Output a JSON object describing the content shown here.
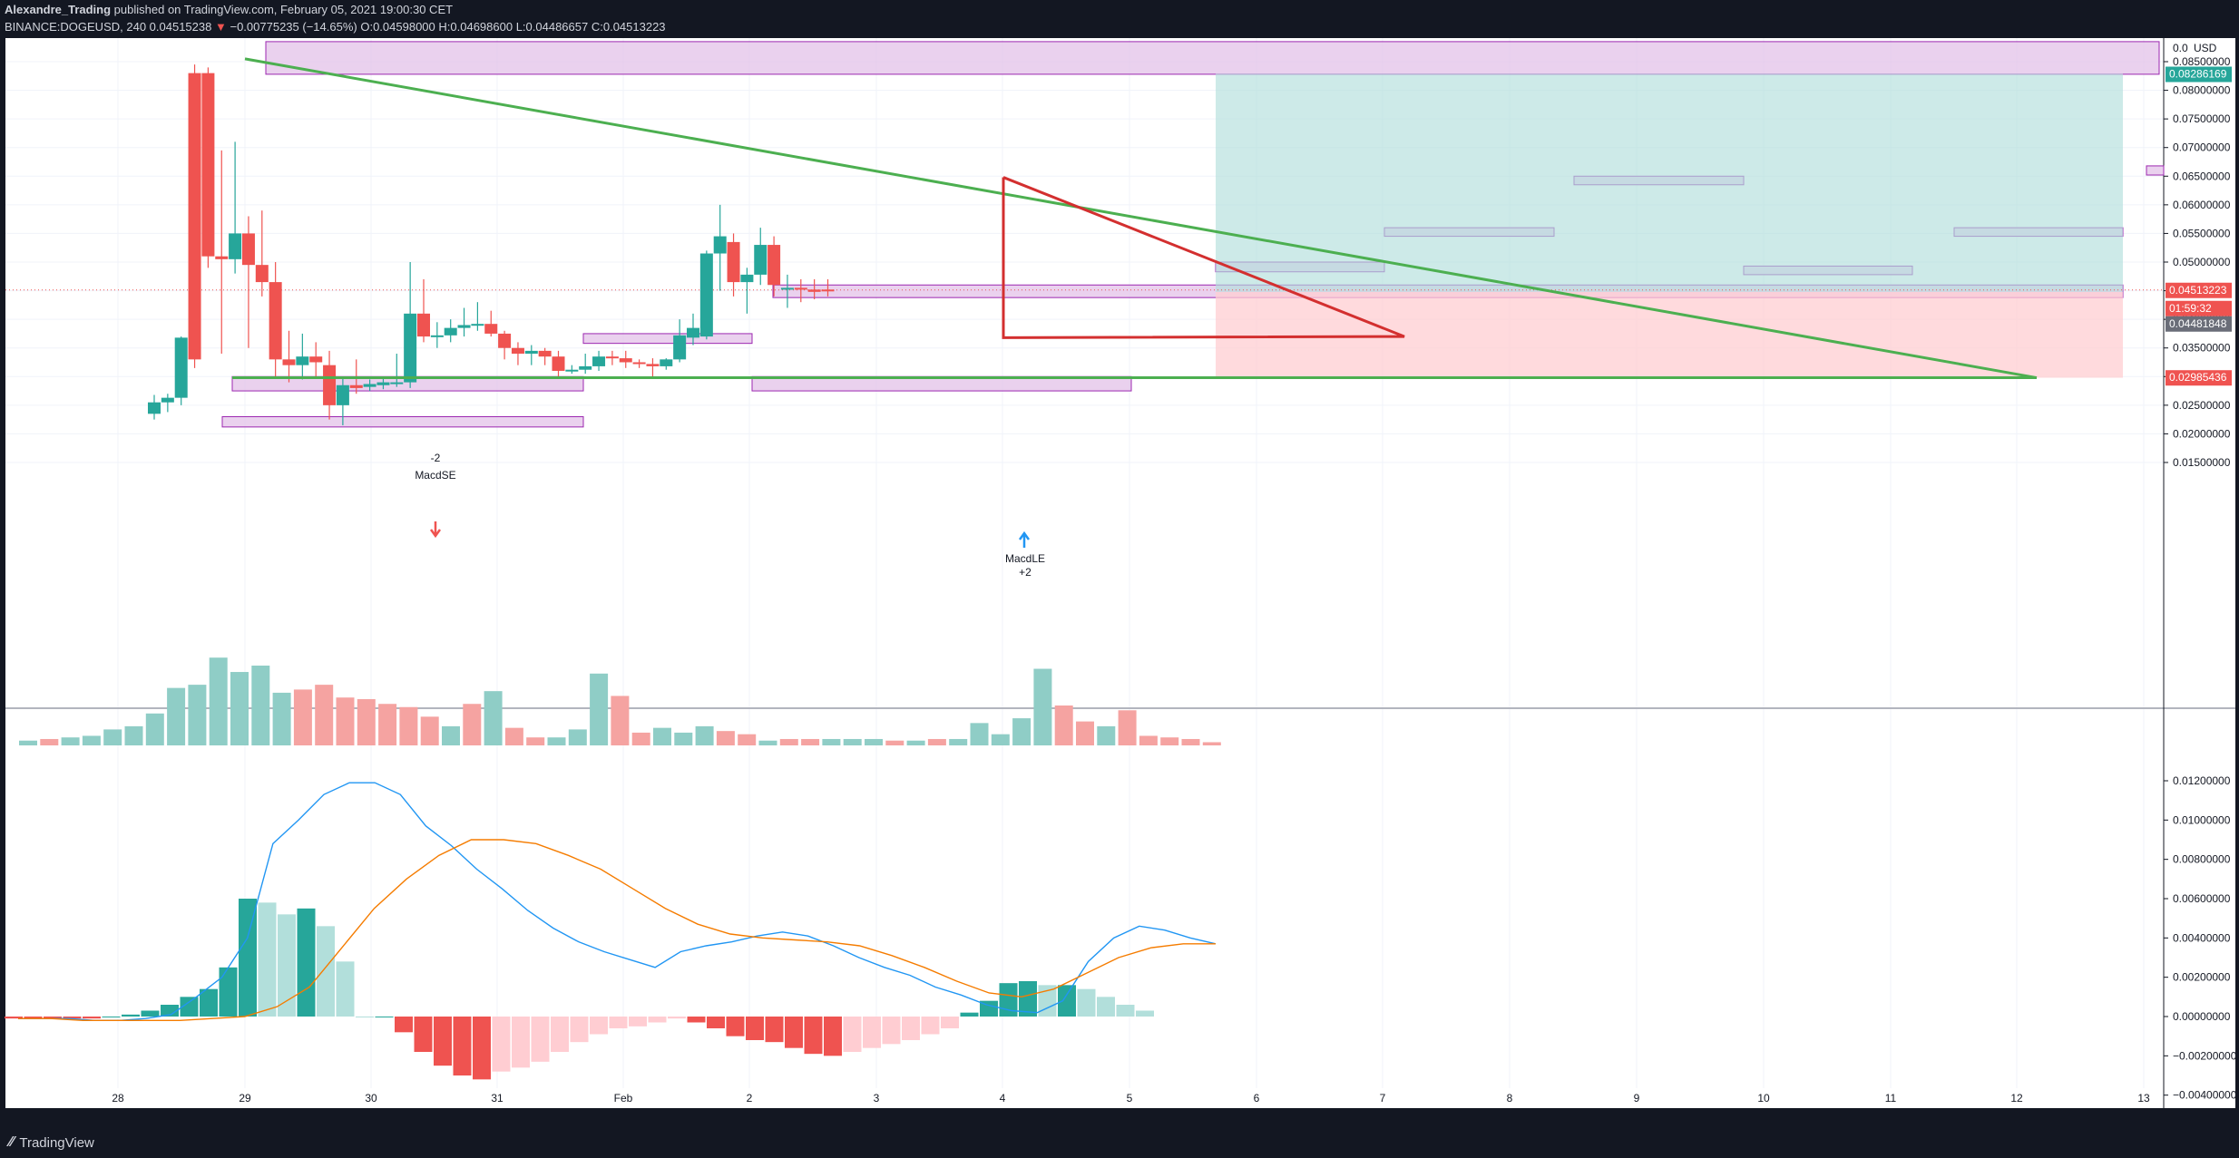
{
  "header": {
    "author": "Alexandre_Trading",
    "published": "published on TradingView.com, February 05, 2021 19:00:30 CET",
    "symbol": "BINANCE:DOGEUSD, 240",
    "last_price": "0.04515238",
    "change": "−0.00775235 (−14.65%)",
    "open_label": "O:",
    "open": "0.04598000",
    "high_label": "H:",
    "high": "0.04698600",
    "low_label": "L:",
    "low": "0.04486657",
    "close_label": "C:",
    "close": "0.04513223"
  },
  "footer": {
    "brand": "TradingView"
  },
  "colors": {
    "up": "#26a69a",
    "down": "#ef5350",
    "up_vol": "#8fcdc6",
    "down_vol": "#f5a3a1",
    "macd": "#2196f3",
    "signal": "#f57c00",
    "hist_up_strong": "#26a69a",
    "hist_up_weak": "#b2dfdb",
    "hist_down_strong": "#ef5350",
    "hist_down_weak": "#ffcdd2",
    "zone_fill": "#e1bee7",
    "zone_stroke": "#9c27b0",
    "trendline": "#4caf50",
    "triangle": "#d32f2f",
    "target_fill": "#b2dfdb",
    "stop_fill": "#ffcdd2"
  },
  "chart_data": {
    "type": "candlestick",
    "currency_label": "USD",
    "price_axis_ticks": [
      "0.01500000",
      "0.02000000",
      "0.02500000",
      "0.03000000",
      "0.03500000",
      "0.04000000",
      "0.04500000",
      "0.05000000",
      "0.05500000",
      "0.06000000",
      "0.06500000",
      "0.07000000",
      "0.07500000",
      "0.08000000",
      "0.08500000"
    ],
    "price_axis_top_label": "0.0",
    "time_ticks": [
      "28",
      "29",
      "30",
      "31",
      "Feb",
      "2",
      "3",
      "4",
      "5",
      "6",
      "7",
      "8",
      "9",
      "10",
      "11",
      "12",
      "13"
    ],
    "price_labels": {
      "target": "0.08286169",
      "last": "0.04513223",
      "countdown": "01:59:32",
      "entry": "0.04481848",
      "stop": "0.02985436"
    },
    "candles": [
      [
        0.0235,
        0.0268,
        0.0225,
        0.0255
      ],
      [
        0.0255,
        0.027,
        0.0238,
        0.0263
      ],
      [
        0.0263,
        0.037,
        0.025,
        0.0368
      ],
      [
        0.083,
        0.0845,
        0.0315,
        0.033
      ],
      [
        0.083,
        0.084,
        0.049,
        0.051
      ],
      [
        0.051,
        0.0695,
        0.034,
        0.0505
      ],
      [
        0.0505,
        0.071,
        0.048,
        0.055
      ],
      [
        0.055,
        0.058,
        0.035,
        0.0495
      ],
      [
        0.0495,
        0.059,
        0.044,
        0.0465
      ],
      [
        0.0465,
        0.05,
        0.03,
        0.033
      ],
      [
        0.033,
        0.038,
        0.029,
        0.032
      ],
      [
        0.032,
        0.0375,
        0.0295,
        0.0335
      ],
      [
        0.0335,
        0.036,
        0.03,
        0.0325
      ],
      [
        0.032,
        0.0345,
        0.0225,
        0.025
      ],
      [
        0.025,
        0.03,
        0.0215,
        0.0285
      ],
      [
        0.0285,
        0.033,
        0.027,
        0.028
      ],
      [
        0.0282,
        0.0295,
        0.0275,
        0.0287
      ],
      [
        0.0285,
        0.0298,
        0.0278,
        0.029
      ],
      [
        0.0288,
        0.034,
        0.0282,
        0.029
      ],
      [
        0.029,
        0.05,
        0.028,
        0.041
      ],
      [
        0.041,
        0.047,
        0.036,
        0.037
      ],
      [
        0.037,
        0.0395,
        0.035,
        0.0372
      ],
      [
        0.0372,
        0.04,
        0.036,
        0.0385
      ],
      [
        0.0385,
        0.042,
        0.037,
        0.039
      ],
      [
        0.039,
        0.043,
        0.038,
        0.0392
      ],
      [
        0.0392,
        0.0415,
        0.037,
        0.0375
      ],
      [
        0.0375,
        0.038,
        0.033,
        0.035
      ],
      [
        0.035,
        0.036,
        0.032,
        0.034
      ],
      [
        0.034,
        0.0355,
        0.032,
        0.0345
      ],
      [
        0.0345,
        0.035,
        0.032,
        0.0335
      ],
      [
        0.0335,
        0.0345,
        0.03,
        0.031
      ],
      [
        0.031,
        0.032,
        0.0305,
        0.0312
      ],
      [
        0.0312,
        0.034,
        0.0305,
        0.0318
      ],
      [
        0.0318,
        0.0345,
        0.031,
        0.0335
      ],
      [
        0.0335,
        0.0345,
        0.032,
        0.0332
      ],
      [
        0.0332,
        0.0345,
        0.0315,
        0.0325
      ],
      [
        0.0325,
        0.033,
        0.0315,
        0.0322
      ],
      [
        0.0322,
        0.0332,
        0.03,
        0.0318
      ],
      [
        0.0318,
        0.0332,
        0.0312,
        0.033
      ],
      [
        0.033,
        0.04,
        0.0325,
        0.0372
      ],
      [
        0.0368,
        0.041,
        0.0355,
        0.0385
      ],
      [
        0.037,
        0.052,
        0.0365,
        0.0515
      ],
      [
        0.0515,
        0.06,
        0.045,
        0.0545
      ],
      [
        0.0535,
        0.055,
        0.044,
        0.0465
      ],
      [
        0.0465,
        0.049,
        0.041,
        0.0478
      ],
      [
        0.0478,
        0.056,
        0.046,
        0.053
      ],
      [
        0.053,
        0.0545,
        0.044,
        0.046
      ],
      [
        0.0455,
        0.0478,
        0.042,
        0.0455
      ],
      [
        0.0455,
        0.047,
        0.043,
        0.0452
      ],
      [
        0.0452,
        0.047,
        0.0435,
        0.0448
      ],
      [
        0.0452,
        0.047,
        0.044,
        0.0451
      ]
    ],
    "volume": [
      [
        0.03,
        0
      ],
      [
        0.04,
        1
      ],
      [
        0.05,
        0
      ],
      [
        0.06,
        0
      ],
      [
        0.1,
        0
      ],
      [
        0.12,
        0
      ],
      [
        0.2,
        0
      ],
      [
        0.36,
        0
      ],
      [
        0.38,
        0
      ],
      [
        0.55,
        0
      ],
      [
        0.46,
        0
      ],
      [
        0.5,
        0
      ],
      [
        0.33,
        0
      ],
      [
        0.35,
        1
      ],
      [
        0.38,
        1
      ],
      [
        0.3,
        1
      ],
      [
        0.29,
        1
      ],
      [
        0.26,
        1
      ],
      [
        0.24,
        1
      ],
      [
        0.18,
        1
      ],
      [
        0.12,
        0
      ],
      [
        0.26,
        1
      ],
      [
        0.34,
        0
      ],
      [
        0.11,
        1
      ],
      [
        0.05,
        1
      ],
      [
        0.05,
        0
      ],
      [
        0.1,
        0
      ],
      [
        0.45,
        0
      ],
      [
        0.31,
        1
      ],
      [
        0.08,
        1
      ],
      [
        0.11,
        0
      ],
      [
        0.08,
        0
      ],
      [
        0.12,
        0
      ],
      [
        0.09,
        1
      ],
      [
        0.07,
        1
      ],
      [
        0.03,
        0
      ],
      [
        0.04,
        1
      ],
      [
        0.04,
        1
      ],
      [
        0.04,
        0
      ],
      [
        0.04,
        0
      ],
      [
        0.04,
        0
      ],
      [
        0.03,
        1
      ],
      [
        0.03,
        0
      ],
      [
        0.04,
        1
      ],
      [
        0.04,
        0
      ],
      [
        0.14,
        0
      ],
      [
        0.07,
        0
      ],
      [
        0.17,
        0
      ],
      [
        0.48,
        0
      ],
      [
        0.25,
        1
      ],
      [
        0.15,
        1
      ],
      [
        0.12,
        0
      ],
      [
        0.22,
        1
      ],
      [
        0.06,
        1
      ],
      [
        0.05,
        1
      ],
      [
        0.04,
        1
      ],
      [
        0.02,
        1
      ]
    ],
    "macd_ticks": [
      "0.01200000",
      "0.01000000",
      "0.00800000",
      "0.00600000",
      "0.00400000",
      "0.00200000",
      "0.00000000",
      "−0.00200000",
      "−0.00400000"
    ],
    "macd_line": [
      -0.0001,
      -0.0001,
      -0.0001,
      -0.0002,
      -0.0002,
      -0.0001,
      0.0001,
      0.001,
      0.002,
      0.004,
      0.0088,
      0.01,
      0.0113,
      0.0119,
      0.0119,
      0.0113,
      0.0097,
      0.0087,
      0.0075,
      0.0065,
      0.0054,
      0.0045,
      0.0038,
      0.0033,
      0.0029,
      0.0025,
      0.0033,
      0.0036,
      0.0038,
      0.0041,
      0.0043,
      0.0041,
      0.0036,
      0.003,
      0.0025,
      0.0021,
      0.0015,
      0.0011,
      0.0006,
      0.0003,
      0.0002,
      0.0008,
      0.0028,
      0.004,
      0.0046,
      0.0044,
      0.004,
      0.0037
    ],
    "signal_line": [
      -0.0001,
      -0.0001,
      -0.0002,
      -0.0002,
      -0.0002,
      -0.0002,
      -0.0001,
      0.0,
      0.0005,
      0.0015,
      0.0035,
      0.0055,
      0.007,
      0.0082,
      0.009,
      0.009,
      0.0088,
      0.0082,
      0.0075,
      0.0065,
      0.0055,
      0.0047,
      0.0042,
      0.004,
      0.0039,
      0.0038,
      0.0036,
      0.0031,
      0.0025,
      0.0018,
      0.0012,
      0.001,
      0.0014,
      0.0022,
      0.003,
      0.0035,
      0.0037,
      0.0037
    ],
    "macd_hist": [
      -0.0001,
      -0.0001,
      -0.0001,
      -0.0001,
      -0.0001,
      0.0,
      0.0001,
      0.0003,
      0.0006,
      0.001,
      0.0014,
      0.0025,
      0.006,
      0.0058,
      0.0052,
      0.0055,
      0.0046,
      0.0028,
      0.0,
      0.0,
      -0.0008,
      -0.0018,
      -0.0025,
      -0.003,
      -0.0032,
      -0.0028,
      -0.0026,
      -0.0023,
      -0.0018,
      -0.0013,
      -0.0009,
      -0.0006,
      -0.0005,
      -0.0003,
      -0.0001,
      -0.0003,
      -0.0006,
      -0.001,
      -0.0012,
      -0.0013,
      -0.0016,
      -0.0019,
      -0.002,
      -0.0018,
      -0.0016,
      -0.0014,
      -0.0012,
      -0.0009,
      -0.0006,
      0.0002,
      0.0008,
      0.0017,
      0.0018,
      0.0016,
      0.0016,
      0.0014,
      0.001,
      0.0006,
      0.0003
    ],
    "annotations": [
      {
        "text": "-2",
        "sub": "MacdSE"
      },
      {
        "text": "MacdLE",
        "sub": "+2"
      }
    ]
  }
}
